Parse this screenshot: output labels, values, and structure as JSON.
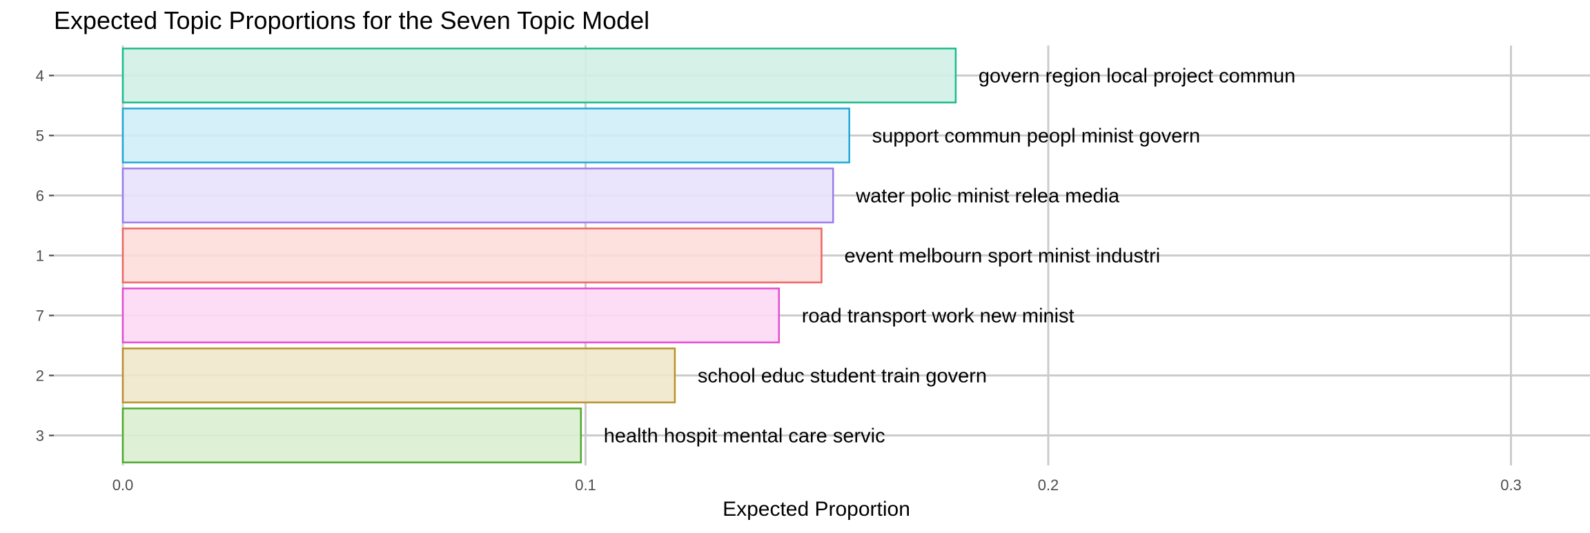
{
  "chart_data": {
    "type": "bar",
    "orientation": "horizontal",
    "title": "Expected Topic Proportions for the Seven Topic Model",
    "xlabel": "Expected Proportion",
    "ylabel": "",
    "xlim": [
      0,
      0.315
    ],
    "x_ticks": [
      {
        "value": 0.0,
        "label": "0.0"
      },
      {
        "value": 0.1,
        "label": "0.1"
      },
      {
        "value": 0.2,
        "label": "0.2"
      },
      {
        "value": 0.3,
        "label": "0.3"
      }
    ],
    "grid": true,
    "legend": "none",
    "bars": [
      {
        "category": "4",
        "value": 0.18,
        "label": "govern region local project commun",
        "color": "#1ABC8C",
        "fill": "#D2F0E6"
      },
      {
        "category": "5",
        "value": 0.157,
        "label": "support commun peopl minist govern",
        "color": "#1EA8D6",
        "fill": "#D0EEF8"
      },
      {
        "category": "6",
        "value": 0.1535,
        "label": "water polic minist relea media",
        "color": "#9A7CEB",
        "fill": "#E8E2FD"
      },
      {
        "category": "1",
        "value": 0.151,
        "label": "event melbourn sport minist industri",
        "color": "#F0655F",
        "fill": "#FCDEDC"
      },
      {
        "category": "7",
        "value": 0.1418,
        "label": "road transport work new minist",
        "color": "#E44AD0",
        "fill": "#FCD9F4"
      },
      {
        "category": "2",
        "value": 0.1193,
        "label": "school educ student train govern",
        "color": "#B8902A",
        "fill": "#F0E7CB"
      },
      {
        "category": "3",
        "value": 0.099,
        "label": "health hospit mental care servic",
        "color": "#4CAA2B",
        "fill": "#DAEED0"
      }
    ]
  }
}
